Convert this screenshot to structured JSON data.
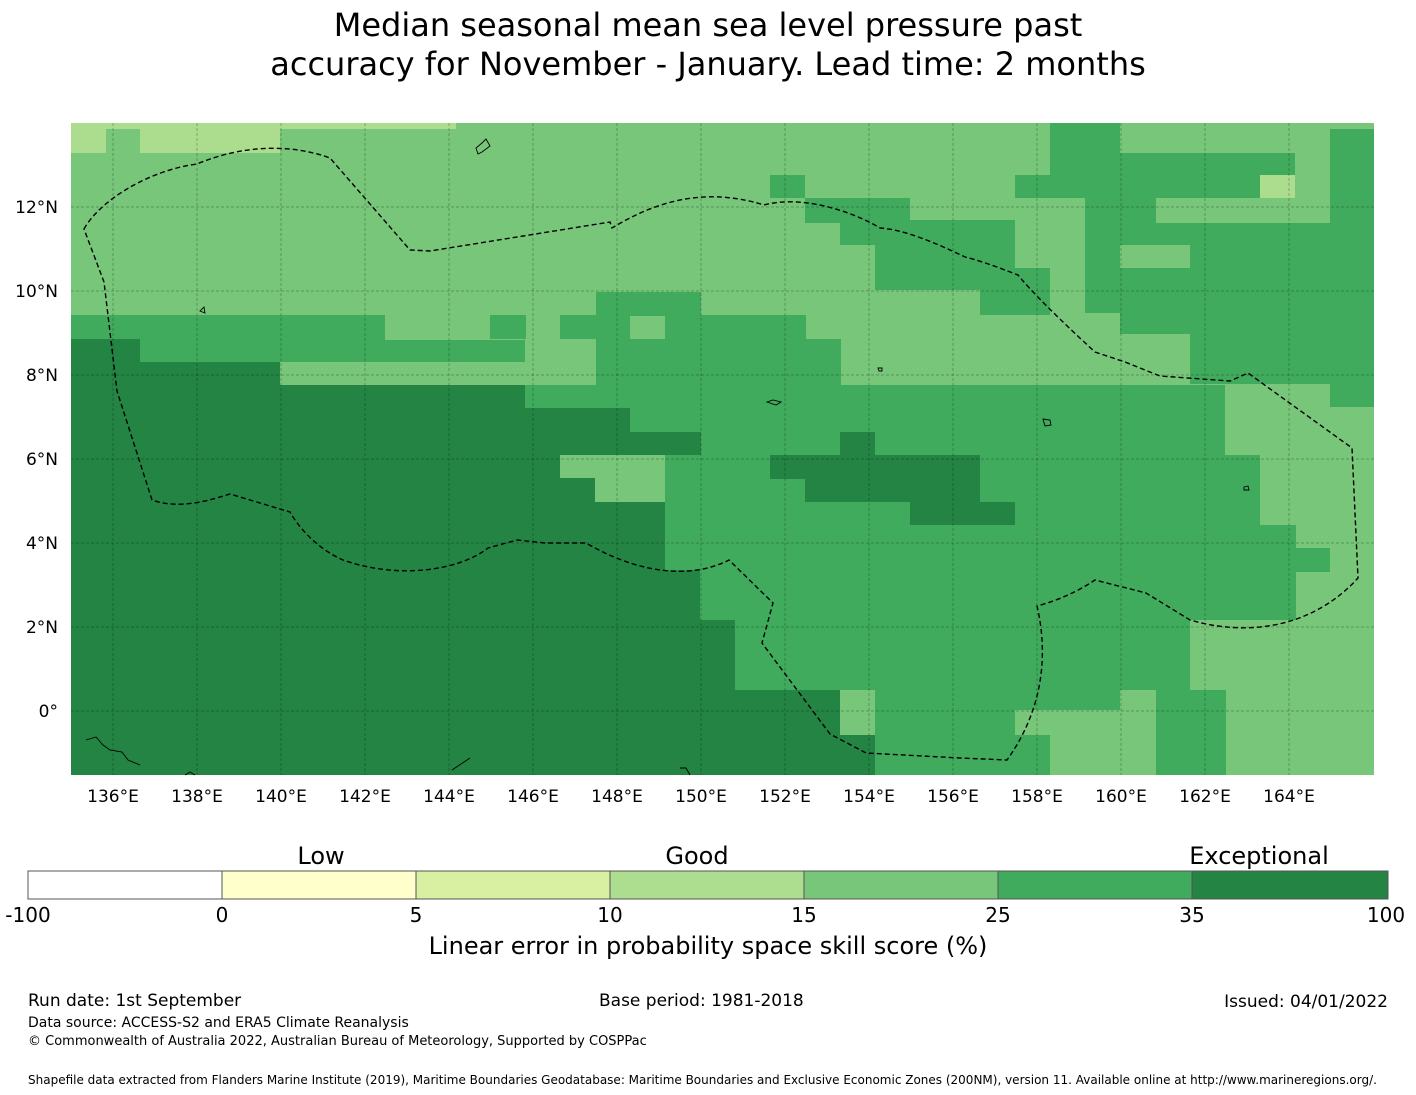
{
  "title": {
    "line1": "Median seasonal mean sea level pressure past",
    "line2": "accuracy for November - January. Lead time: 2 months"
  },
  "map": {
    "lon_range": [
      135,
      166
    ],
    "lat_range": [
      -1.5,
      14
    ],
    "x_ticks": [
      "136°E",
      "138°E",
      "140°E",
      "142°E",
      "144°E",
      "146°E",
      "148°E",
      "150°E",
      "152°E",
      "154°E",
      "156°E",
      "158°E",
      "160°E",
      "162°E",
      "164°E"
    ],
    "y_ticks": [
      "12°N",
      "10°N",
      "8°N",
      "6°N",
      "4°N",
      "2°N",
      "0°"
    ],
    "colors": {
      "bin_10_15": "#acdd8e",
      "bin_15_25": "#78c679",
      "bin_25_35": "#41ab5d",
      "bin_35_100": "#238443"
    },
    "eez_boundary_style": "dashed"
  },
  "colorbar": {
    "categories": [
      "Low",
      "Good",
      "Exceptional"
    ],
    "ticks": [
      "-100",
      "0",
      "5",
      "10",
      "15",
      "25",
      "35",
      "100"
    ],
    "colors": [
      "#ffffff",
      "#ffffcc",
      "#d9f0a3",
      "#addd8e",
      "#78c679",
      "#41ab5d",
      "#238443"
    ],
    "label": "Linear error in probability space skill score (%)"
  },
  "footer": {
    "run_date": "Run date: 1st September",
    "base_period": "Base period: 1981-2018",
    "issued": "Issued: 04/01/2022",
    "data_source": "Data source: ACCESS-S2 and ERA5 Climate Reanalysis",
    "copyright": "© Commonwealth of Australia 2022, Australian Bureau of Meteorology, Supported by COSPPac",
    "shapefile": "Shapefile data extracted from Flanders Marine Institute (2019), Maritime Boundaries Geodatabase: Maritime Boundaries and Exclusive Economic Zones (200NM), version 11. Available online at http://www.marineregions.org/."
  }
}
